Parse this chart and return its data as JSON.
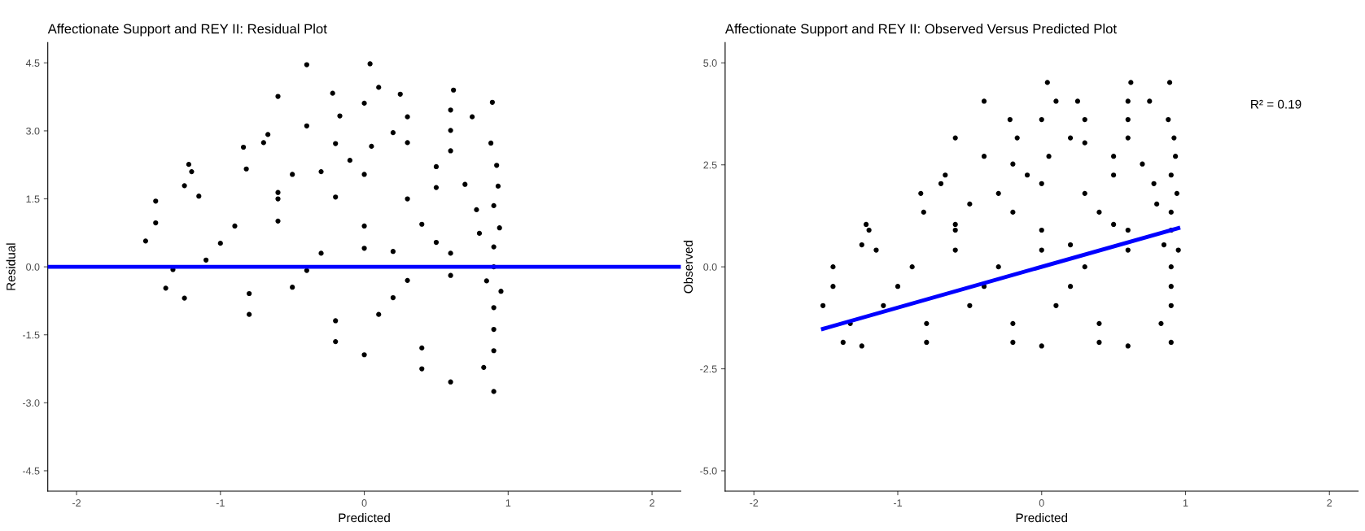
{
  "chart_data": [
    {
      "type": "scatter",
      "title": "Affectionate Support and REY II: Residual Plot",
      "xlabel": "Predicted",
      "ylabel": "Residual",
      "grid": false,
      "marker": "circle",
      "xlim": [
        -2.2,
        2.2
      ],
      "xticks": [
        -2,
        -1,
        0,
        1,
        2
      ],
      "ylim": [
        -4.95,
        4.95
      ],
      "yticks": [
        {
          "value": -4.5,
          "label": "-4.5"
        },
        {
          "value": -3,
          "label": "-3.0"
        },
        {
          "value": -1.5,
          "label": "-1.5"
        },
        {
          "value": 0,
          "label": "0.0"
        },
        {
          "value": 1.5,
          "label": "1.5"
        },
        {
          "value": 3,
          "label": "3.0"
        },
        {
          "value": 4.5,
          "label": "4.5"
        }
      ],
      "series": [
        {
          "color": "#000000",
          "x": [
            0.04,
            0.62,
            0.89,
            -0.4,
            0.1,
            0.25,
            0.6,
            0.75,
            -0.22,
            0.0,
            0.3,
            0.6,
            0.88,
            -0.6,
            -0.17,
            0.2,
            0.6,
            0.92,
            -0.4,
            0.05,
            0.5,
            0.93,
            -0.67,
            -0.1,
            0.5,
            0.9,
            -0.84,
            -0.3,
            0.3,
            0.94,
            -0.82,
            -0.2,
            0.4,
            0.9,
            -1.2,
            -0.6,
            0.0,
            0.6,
            0.9,
            -1.15,
            -0.6,
            0.0,
            0.6,
            0.95,
            -1.45,
            -0.9,
            -0.3,
            0.3,
            0.9,
            -1.45,
            -1.0,
            -0.4,
            0.2,
            0.9,
            -1.52,
            -1.1,
            -0.5,
            0.1,
            0.9,
            -1.33,
            -0.8,
            -0.2,
            0.4,
            0.83,
            -1.38,
            -0.8,
            -0.2,
            0.4,
            0.9,
            -0.7,
            0.0,
            0.78,
            -1.22,
            -0.6,
            0.5,
            -1.25,
            0.2,
            0.85,
            -1.25,
            0.0,
            0.6,
            -0.5,
            0.8,
            -0.2,
            0.7,
            0.3
          ],
          "values": [
            4.48,
            3.9,
            3.63,
            4.46,
            3.96,
            3.81,
            3.46,
            3.31,
            3.83,
            3.61,
            3.31,
            3.01,
            2.73,
            3.76,
            3.33,
            2.96,
            2.56,
            2.24,
            3.11,
            2.66,
            2.21,
            1.78,
            2.92,
            2.35,
            1.75,
            1.35,
            2.64,
            2.1,
            1.5,
            0.86,
            2.16,
            1.54,
            0.94,
            0.44,
            2.1,
            1.5,
            0.9,
            0.3,
            0.0,
            1.56,
            1.01,
            0.41,
            -0.19,
            -0.54,
            1.45,
            0.9,
            0.3,
            -0.3,
            -0.9,
            0.97,
            0.52,
            -0.08,
            -0.68,
            -1.38,
            0.57,
            0.15,
            -0.45,
            -1.05,
            -1.85,
            -0.06,
            -0.59,
            -1.19,
            -1.79,
            -2.22,
            -0.47,
            -1.05,
            -1.65,
            -2.25,
            -2.75,
            2.74,
            2.04,
            1.26,
            2.26,
            1.64,
            0.54,
            1.79,
            0.34,
            -0.31,
            -0.69,
            -1.94,
            -2.54,
            2.04,
            0.74,
            2.72,
            1.82,
            2.74
          ]
        }
      ],
      "ref_lines": [
        {
          "axis": "y",
          "value": 0,
          "color": "#0000ff"
        }
      ]
    },
    {
      "type": "scatter",
      "title": "Affectionate Support and REY II: Observed Versus Predicted Plot",
      "xlabel": "Predicted",
      "ylabel": "Observed",
      "grid": false,
      "marker": "circle",
      "xlim": [
        -2.2,
        2.2
      ],
      "xticks": [
        -2,
        -1,
        0,
        1,
        2
      ],
      "ylim": [
        -5.5,
        5.5
      ],
      "yticks": [
        {
          "value": -5,
          "label": "-5.0"
        },
        {
          "value": -2.5,
          "label": "-2.5"
        },
        {
          "value": 0,
          "label": "0.0"
        },
        {
          "value": 2.5,
          "label": "2.5"
        },
        {
          "value": 5,
          "label": "5.0"
        }
      ],
      "annotations": [
        "R² = 0.19"
      ],
      "series": [
        {
          "color": "#000000",
          "x": [
            0.04,
            0.62,
            0.89,
            -0.4,
            0.1,
            0.25,
            0.6,
            0.75,
            -0.22,
            0.0,
            0.3,
            0.6,
            0.88,
            -0.6,
            -0.17,
            0.2,
            0.6,
            0.92,
            -0.4,
            0.05,
            0.5,
            0.93,
            -0.67,
            -0.1,
            0.5,
            0.9,
            -0.84,
            -0.3,
            0.3,
            0.94,
            -0.82,
            -0.2,
            0.4,
            0.9,
            -1.2,
            -0.6,
            0.0,
            0.6,
            0.9,
            -1.15,
            -0.6,
            0.0,
            0.6,
            0.95,
            -1.45,
            -0.9,
            -0.3,
            0.3,
            0.9,
            -1.45,
            -1.0,
            -0.4,
            0.2,
            0.9,
            -1.52,
            -1.1,
            -0.5,
            0.1,
            0.9,
            -1.33,
            -0.8,
            -0.2,
            0.4,
            0.83,
            -1.38,
            -0.8,
            -0.2,
            0.4,
            0.9,
            -0.7,
            0.0,
            0.78,
            -1.22,
            -0.6,
            0.5,
            -1.25,
            0.2,
            0.85,
            -1.25,
            0.0,
            0.6,
            -0.5,
            0.8,
            -0.2,
            0.7,
            0.3
          ],
          "values": [
            4.52,
            4.52,
            4.52,
            4.06,
            4.06,
            4.06,
            4.06,
            4.06,
            3.61,
            3.61,
            3.61,
            3.61,
            3.61,
            3.16,
            3.16,
            3.16,
            3.16,
            3.16,
            2.71,
            2.71,
            2.71,
            2.71,
            2.25,
            2.25,
            2.25,
            2.25,
            1.8,
            1.8,
            1.8,
            1.8,
            1.34,
            1.34,
            1.34,
            1.34,
            0.9,
            0.9,
            0.9,
            0.9,
            0.9,
            0.41,
            0.41,
            0.41,
            0.41,
            0.41,
            0.0,
            0.0,
            0.0,
            0.0,
            0.0,
            -0.48,
            -0.48,
            -0.48,
            -0.48,
            -0.48,
            -0.95,
            -0.95,
            -0.95,
            -0.95,
            -0.95,
            -1.39,
            -1.39,
            -1.39,
            -1.39,
            -1.39,
            -1.85,
            -1.85,
            -1.85,
            -1.85,
            -1.85,
            2.04,
            2.04,
            2.04,
            1.04,
            1.04,
            1.04,
            0.54,
            0.54,
            0.54,
            -1.94,
            -1.94,
            -1.94,
            1.54,
            1.54,
            2.52,
            2.52,
            3.04
          ]
        },
        {
          "type": "line",
          "marker": "none",
          "color": "#0000ff",
          "x": [
            -1.52,
            0.95
          ],
          "values": [
            -1.52,
            0.95
          ]
        }
      ]
    }
  ]
}
